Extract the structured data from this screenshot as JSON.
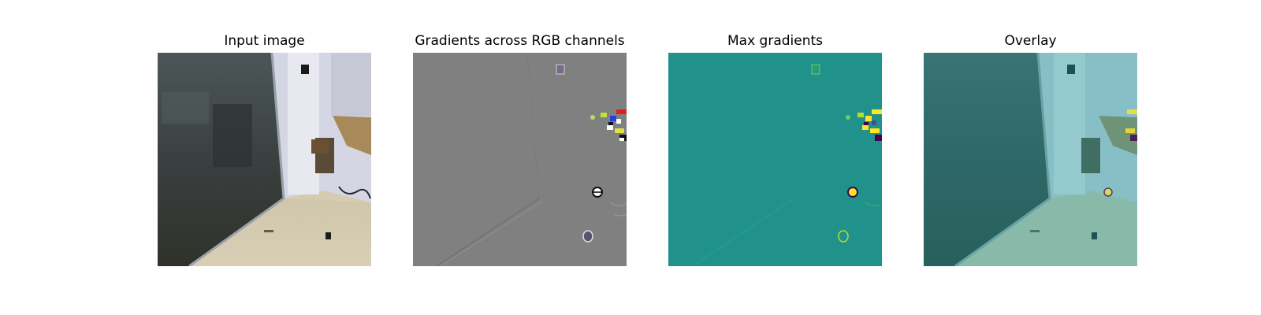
{
  "figure": {
    "panels": [
      {
        "id": "input",
        "title": "Input image"
      },
      {
        "id": "gradients",
        "title": "Gradients across RGB channels"
      },
      {
        "id": "max",
        "title": "Max gradients"
      },
      {
        "id": "overlay",
        "title": "Overlay"
      }
    ],
    "colors": {
      "gray_background": "#808080",
      "viridis_background": "#21918c",
      "viridis_high": "#fde725",
      "viridis_low": "#440154",
      "overlay_tint": "#20a0a0"
    }
  }
}
